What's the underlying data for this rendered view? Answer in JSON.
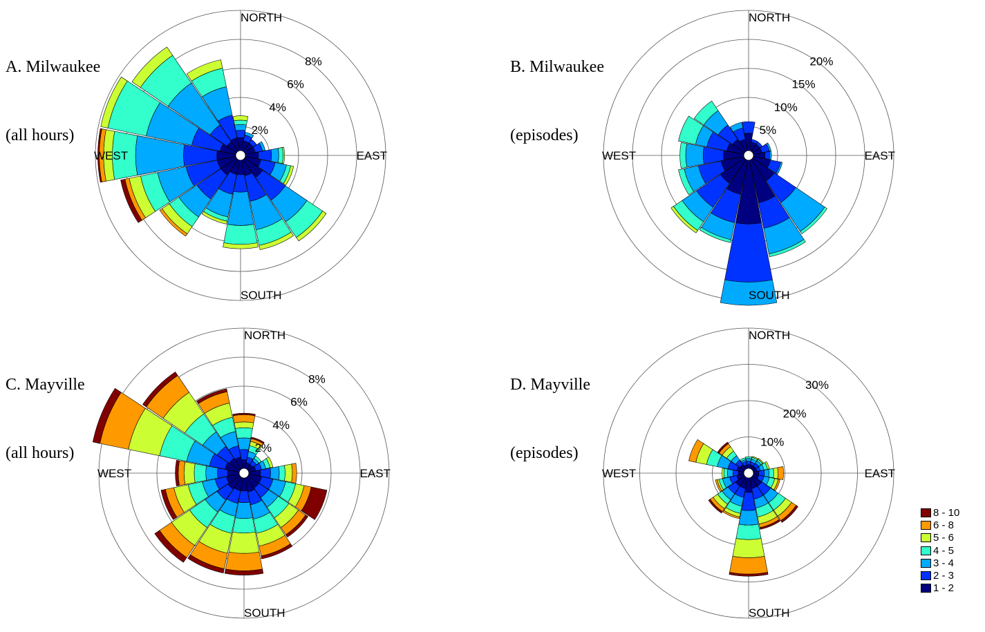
{
  "figure": {
    "legend": [
      {
        "label": "8 - 10",
        "color": "#800000"
      },
      {
        "label": "6 - 8",
        "color": "#ff9900"
      },
      {
        "label": "5 - 6",
        "color": "#ccff33"
      },
      {
        "label": "4 - 5",
        "color": "#33ffcc"
      },
      {
        "label": "3 - 4",
        "color": "#00aaff"
      },
      {
        "label": "2 - 3",
        "color": "#0033ff"
      },
      {
        "label": "1 - 2",
        "color": "#000080"
      }
    ]
  },
  "chart_data": [
    {
      "type": "windrose",
      "title_line1": "A. Milwaukee",
      "title_line2": "(all hours)",
      "direction_labels": {
        "north": "NORTH",
        "south": "SOUTH",
        "east": "EAST",
        "west": "WEST"
      },
      "ring_max": 10,
      "ring_values": [
        2,
        4,
        6,
        8,
        10
      ],
      "ring_tick_labels": [
        "2%",
        "4%",
        "6%",
        "8%"
      ],
      "bin_colors": [
        "#000080",
        "#0033ff",
        "#00aaff",
        "#33ffcc",
        "#ccff33",
        "#ff9900",
        "#800000"
      ],
      "sector_width_deg": 22.5,
      "sectors": [
        {
          "dir": 0,
          "values": [
            0.9,
            0.5,
            0.4,
            0.3,
            0.3
          ]
        },
        {
          "dir": 22.5,
          "values": [
            0.7,
            0.4,
            0.2
          ]
        },
        {
          "dir": 45,
          "values": [
            0.7,
            0.3
          ]
        },
        {
          "dir": 67.5,
          "values": [
            0.7,
            0.5,
            0.2
          ]
        },
        {
          "dir": 90,
          "values": [
            0.9,
            0.9,
            0.5,
            0.3,
            0.1
          ]
        },
        {
          "dir": 112.5,
          "values": [
            1.1,
            1.0,
            0.8,
            0.3,
            0.2
          ]
        },
        {
          "dir": 135,
          "values": [
            1.5,
            1.9,
            1.8,
            1.3,
            0.3
          ]
        },
        {
          "dir": 157.5,
          "values": [
            1.1,
            1.8,
            2.0,
            1.1,
            0.3
          ]
        },
        {
          "dir": 180,
          "values": [
            1.0,
            1.2,
            2.3,
            1.3,
            0.3
          ]
        },
        {
          "dir": 202.5,
          "values": [
            1.0,
            1.4,
            1.6,
            0.3,
            0.2
          ]
        },
        {
          "dir": 225,
          "values": [
            1.3,
            2.0,
            1.5,
            0.8,
            0.6,
            0.2
          ]
        },
        {
          "dir": 247.5,
          "values": [
            1.3,
            2.2,
            2.0,
            1.2,
            0.8,
            0.3,
            0.3
          ]
        },
        {
          "dir": 270,
          "values": [
            1.3,
            2.3,
            3.3,
            1.6,
            0.6,
            0.3,
            0.1
          ]
        },
        {
          "dir": 292.5,
          "values": [
            1.1,
            2.0,
            3.2,
            2.7,
            0.5
          ]
        },
        {
          "dir": 315,
          "values": [
            0.8,
            1.4,
            3.5,
            2.3,
            0.7
          ]
        },
        {
          "dir": 337.5,
          "values": [
            0.9,
            1.6,
            2.0,
            1.3,
            0.6
          ]
        }
      ]
    },
    {
      "type": "windrose",
      "title_line1": "B. Milwaukee",
      "title_line2": "(episodes)",
      "direction_labels": {
        "north": "NORTH",
        "south": "SOUTH",
        "east": "EAST",
        "west": "WEST"
      },
      "ring_max": 25,
      "ring_values": [
        5,
        10,
        15,
        20,
        25
      ],
      "ring_tick_labels": [
        "5%",
        "10%",
        "15%",
        "20%"
      ],
      "bin_colors": [
        "#000080",
        "#0033ff",
        "#00aaff",
        "#33ffcc",
        "#ccff33",
        "#ff9900",
        "#800000"
      ],
      "sector_width_deg": 22.5,
      "sectors": [
        {
          "dir": 0,
          "values": [
            3.0,
            2.0
          ]
        },
        {
          "dir": 22.5,
          "values": [
            1.5,
            0.5
          ]
        },
        {
          "dir": 45,
          "values": [
            1.5,
            0.5
          ]
        },
        {
          "dir": 67.5,
          "values": [
            1.5,
            1.3,
            0.3
          ]
        },
        {
          "dir": 90,
          "values": [
            2.0,
            0.8,
            0.3
          ]
        },
        {
          "dir": 112.5,
          "values": [
            3.0,
            1.8,
            0.3
          ]
        },
        {
          "dir": 135,
          "values": [
            4.5,
            4.5,
            6.0,
            0.5
          ]
        },
        {
          "dir": 157.5,
          "values": [
            7.5,
            4.5,
            4.5,
            0.5
          ]
        },
        {
          "dir": 180,
          "values": [
            11.0,
            10.0,
            4.0
          ]
        },
        {
          "dir": 202.5,
          "values": [
            6.0,
            5.0,
            3.0,
            0.5
          ]
        },
        {
          "dir": 225,
          "values": [
            5.0,
            5.0,
            3.0,
            1.8,
            0.5
          ]
        },
        {
          "dir": 247.5,
          "values": [
            4.0,
            4.0,
            2.5,
            1.0
          ]
        },
        {
          "dir": 270,
          "values": [
            3.5,
            3.5,
            3.0,
            1.0
          ]
        },
        {
          "dir": 292.5,
          "values": [
            3.0,
            3.5,
            2.0,
            3.0
          ]
        },
        {
          "dir": 315,
          "values": [
            2.5,
            3.0,
            3.0,
            2.0
          ]
        },
        {
          "dir": 337.5,
          "values": [
            2.0,
            2.0,
            1.0
          ]
        }
      ]
    },
    {
      "type": "windrose",
      "title_line1": "C. Mayville",
      "title_line2": "(all hours)",
      "direction_labels": {
        "north": "NORTH",
        "south": "SOUTH",
        "east": "EAST",
        "west": "WEST"
      },
      "ring_max": 10,
      "ring_values": [
        2,
        4,
        6,
        8,
        10
      ],
      "ring_tick_labels": [
        "2%",
        "4%",
        "6%",
        "8%"
      ],
      "bin_colors": [
        "#000080",
        "#0033ff",
        "#00aaff",
        "#33ffcc",
        "#ccff33",
        "#ff9900",
        "#800000"
      ],
      "sector_width_deg": 22.5,
      "sectors": [
        {
          "dir": 0,
          "values": [
            0.6,
            0.7,
            0.8,
            0.7,
            0.4,
            0.5,
            0.1
          ]
        },
        {
          "dir": 22.5,
          "values": [
            0.4,
            0.4,
            0.4,
            0.4,
            0.3,
            0.2,
            0.1
          ]
        },
        {
          "dir": 45,
          "values": [
            0.4,
            0.3,
            0.2,
            0.2
          ]
        },
        {
          "dir": 67.5,
          "values": [
            0.5,
            0.4,
            0.3,
            0.3,
            0.2
          ]
        },
        {
          "dir": 90,
          "values": [
            0.8,
            0.7,
            0.6,
            0.4,
            0.5,
            0.3
          ]
        },
        {
          "dir": 112.5,
          "values": [
            0.9,
            0.8,
            0.9,
            0.7,
            0.6,
            0.5,
            1.1
          ]
        },
        {
          "dir": 135,
          "values": [
            0.9,
            0.8,
            0.8,
            0.9,
            0.8,
            0.6,
            0.2
          ]
        },
        {
          "dir": 157.5,
          "values": [
            1.0,
            0.9,
            1.0,
            1.0,
            0.9,
            0.7,
            0.2
          ]
        },
        {
          "dir": 180,
          "values": [
            0.9,
            0.8,
            1.1,
            1.0,
            1.4,
            1.2,
            0.3
          ]
        },
        {
          "dir": 202.5,
          "values": [
            0.9,
            0.9,
            0.9,
            1.2,
            1.4,
            1.1,
            0.3
          ]
        },
        {
          "dir": 225,
          "values": [
            1.0,
            0.9,
            1.0,
            1.3,
            1.5,
            1.0,
            0.4
          ]
        },
        {
          "dir": 247.5,
          "values": [
            0.9,
            0.8,
            0.9,
            1.0,
            1.0,
            0.6,
            0.3
          ]
        },
        {
          "dir": 270,
          "values": [
            0.8,
            0.7,
            0.8,
            0.8,
            0.7,
            0.4,
            0.2
          ]
        },
        {
          "dir": 292.5,
          "values": [
            1.0,
            1.1,
            1.6,
            1.9,
            2.2,
            2.0,
            0.5
          ]
        },
        {
          "dir": 315,
          "values": [
            0.9,
            1.0,
            1.2,
            1.5,
            1.8,
            1.4,
            0.3
          ]
        },
        {
          "dir": 337.5,
          "values": [
            0.8,
            0.8,
            1.0,
            1.0,
            1.0,
            0.8,
            0.2
          ]
        }
      ]
    },
    {
      "type": "windrose",
      "title_line1": "D. Mayville",
      "title_line2": "(episodes)",
      "direction_labels": {
        "north": "NORTH",
        "south": "SOUTH",
        "east": "EAST",
        "west": "WEST"
      },
      "ring_max": 40,
      "ring_values": [
        10,
        20,
        30,
        40
      ],
      "ring_tick_labels": [
        "10%",
        "20%",
        "30%"
      ],
      "bin_colors": [
        "#000080",
        "#0033ff",
        "#00aaff",
        "#33ffcc",
        "#ccff33",
        "#ff9900",
        "#800000"
      ],
      "sector_width_deg": 22.5,
      "sectors": [
        {
          "dir": 0,
          "values": [
            1.0,
            1.0,
            0.7,
            0.5
          ]
        },
        {
          "dir": 22.5,
          "values": [
            1.0,
            0.8,
            0.8,
            0.5,
            0.3
          ]
        },
        {
          "dir": 45,
          "values": [
            1.0,
            1.0,
            0.8,
            0.5,
            0.3
          ]
        },
        {
          "dir": 67.5,
          "values": [
            1.0,
            1.0,
            1.0,
            1.0,
            0.5
          ]
        },
        {
          "dir": 90,
          "values": [
            1.5,
            1.5,
            1.3,
            1.3,
            1.2,
            1.5
          ]
        },
        {
          "dir": 112.5,
          "values": [
            1.5,
            1.5,
            1.5,
            1.5,
            1.0,
            0.5
          ]
        },
        {
          "dir": 135,
          "values": [
            3.0,
            3.0,
            2.5,
            2.5,
            2.0,
            1.5,
            0.6
          ]
        },
        {
          "dir": 157.5,
          "values": [
            3.0,
            3.0,
            2.5,
            2.5,
            2.0,
            1.0,
            0.5
          ]
        },
        {
          "dir": 180,
          "values": [
            4.0,
            5.0,
            4.0,
            4.0,
            5.0,
            4.5,
            0.6
          ]
        },
        {
          "dir": 202.5,
          "values": [
            3.0,
            2.5,
            2.5,
            2.0,
            1.0,
            0.5
          ]
        },
        {
          "dir": 225,
          "values": [
            3.0,
            2.5,
            2.0,
            1.5,
            1.5,
            1.0,
            0.5
          ]
        },
        {
          "dir": 247.5,
          "values": [
            2.0,
            2.0,
            2.0,
            1.0,
            0.5,
            0.5
          ]
        },
        {
          "dir": 270,
          "values": [
            1.5,
            1.5,
            1.5,
            1.0,
            0.5
          ]
        },
        {
          "dir": 292.5,
          "values": [
            2.0,
            2.5,
            3.0,
            3.0,
            3.0,
            2.0
          ]
        },
        {
          "dir": 315,
          "values": [
            1.5,
            1.5,
            1.5,
            1.5,
            1.5,
            1.0,
            0.5
          ]
        },
        {
          "dir": 337.5,
          "values": [
            1.0,
            1.0,
            0.5,
            0.5
          ]
        }
      ]
    }
  ]
}
